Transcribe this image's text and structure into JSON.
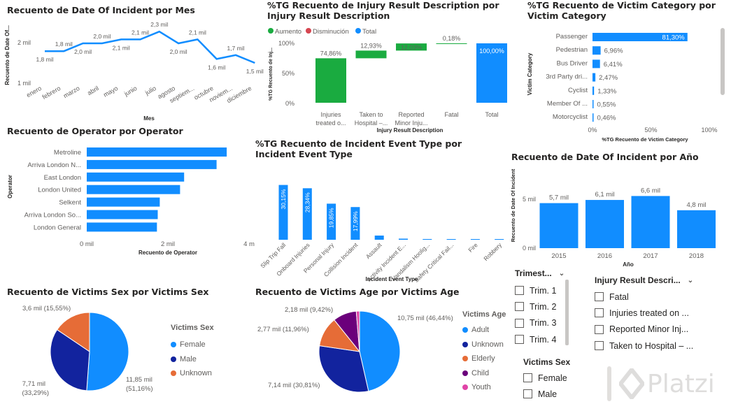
{
  "colors": {
    "blue": "#118DFF",
    "navy": "#12239E",
    "orange": "#E66C37",
    "purple": "#6B007B",
    "pink": "#E044A7",
    "green": "#1AAB40",
    "red": "#D64550",
    "axis": "#605e5c"
  },
  "brand": {
    "name": "Platzi"
  },
  "chart_data": [
    {
      "id": "by_month",
      "type": "line",
      "title": "Recuento de Date Of Incident por Mes",
      "xlabel": "Mes",
      "ylabel": "Recuento de Date Of...",
      "categories": [
        "enero",
        "febrero",
        "marzo",
        "abril",
        "mayo",
        "junio",
        "julio",
        "agosto",
        "septiem...",
        "octubre",
        "noviem...",
        "diciembre"
      ],
      "values": [
        1.8,
        1.8,
        2.0,
        2.0,
        2.1,
        2.1,
        2.3,
        2.0,
        2.1,
        1.6,
        1.7,
        1.5
      ],
      "data_labels": [
        "1,8 mil",
        "1,8 mil",
        "2,0 mil",
        "2,0 mil",
        "2,1 mil",
        "2,1 mil",
        "2,3 mil",
        "2,0 mil",
        "2,1 mil",
        "1,6 mil",
        "1,7 mil",
        "1,5 mil"
      ],
      "ylim": [
        1,
        2.5
      ],
      "yticks": [
        "1 mil",
        "2 mil"
      ]
    },
    {
      "id": "injury_waterfall",
      "type": "bar",
      "title": "%TG Recuento de Injury Result Description por Injury Result Description",
      "xlabel": "Injury Result Description",
      "ylabel": "%TG Recuento de Inj...",
      "legend": [
        "Aumento",
        "Disminución",
        "Total"
      ],
      "categories": [
        "Injuries treated o...",
        "Taken to Hospital –...",
        "Reported Minor Inju...",
        "Fatal",
        "Total"
      ],
      "values": [
        74.86,
        12.93,
        12.03,
        0.18,
        100.0
      ],
      "data_labels": [
        "74,86%",
        "12,93%",
        "12,03%",
        "0,18%",
        "100,00%"
      ],
      "yticks": [
        "0%",
        "50%",
        "100%"
      ]
    },
    {
      "id": "victim_category",
      "type": "bar",
      "title": "%TG Recuento de Victim Category por Victim Category",
      "xlabel": "%TG Recuento de Victim Category",
      "ylabel": "Victim Category",
      "categories": [
        "Passenger",
        "Pedestrian",
        "Bus Driver",
        "3rd Party dri...",
        "Cyclist",
        "Member Of ...",
        "Motorcyclist"
      ],
      "values": [
        81.3,
        6.96,
        6.41,
        2.47,
        1.33,
        0.55,
        0.46
      ],
      "data_labels": [
        "81,30%",
        "6,96%",
        "6,41%",
        "2,47%",
        "1,33%",
        "0,55%",
        "0,46%"
      ],
      "xticks": [
        "0%",
        "50%",
        "100%"
      ]
    },
    {
      "id": "operator",
      "type": "bar",
      "title": "Recuento de Operator por Operator",
      "xlabel": "Recuento de Operator",
      "ylabel": "Operator",
      "categories": [
        "Metroline",
        "Arriva London N...",
        "East London",
        "London United",
        "Selkent",
        "Arriva London So...",
        "London General"
      ],
      "values": [
        3.45,
        3.2,
        2.4,
        2.3,
        1.8,
        1.75,
        1.73
      ],
      "xticks": [
        "0 mil",
        "2 mil",
        "4 m"
      ]
    },
    {
      "id": "event_type",
      "type": "bar",
      "title": "%TG Recuento de Incident Event Type por Incident Event Type",
      "xlabel": "Incident Event Type",
      "categories": [
        "Slip Trip Fall",
        "Onboard Injuries",
        "Personal Injury",
        "Collision Incident",
        "Assault",
        "Activity Incident E...",
        "Vandalism Hoolig...",
        "Safety Critical Fail...",
        "Fire",
        "Robbery"
      ],
      "values": [
        30.15,
        28.34,
        19.85,
        17.99,
        2.3,
        0.6,
        0.4,
        0.3,
        0.2,
        0.2
      ],
      "data_labels": [
        "30,15%",
        "28,34%",
        "19,85%",
        "17,99%",
        "",
        "",
        "",
        "",
        "",
        ""
      ]
    },
    {
      "id": "by_year",
      "type": "bar",
      "title": "Recuento de Date Of Incident por Año",
      "xlabel": "Año",
      "ylabel": "Recuento de Date Of Incident",
      "categories": [
        "2015",
        "2016",
        "2017",
        "2018"
      ],
      "values": [
        5.7,
        6.1,
        6.6,
        4.8
      ],
      "data_labels": [
        "5,7 mil",
        "6,1 mil",
        "6,6 mil",
        "4,8 mil"
      ],
      "yticks": [
        "0 mil",
        "5 mil"
      ]
    },
    {
      "id": "victims_sex",
      "type": "pie",
      "title": "Recuento de Victims Sex por Victims Sex",
      "legend_title": "Victims Sex",
      "categories": [
        "Female",
        "Male",
        "Unknown"
      ],
      "values": [
        11.85,
        7.71,
        3.6
      ],
      "percents": [
        51.16,
        33.29,
        15.55
      ],
      "labels_line1": [
        "11,85 mil",
        "7,71 mil",
        "3,6 mil (15,55%)"
      ],
      "labels_line2": [
        "(51,16%)",
        "(33,29%)",
        ""
      ]
    },
    {
      "id": "victims_age",
      "type": "pie",
      "title": "Recuento de Victims Age por Victims Age",
      "legend_title": "Victims Age",
      "categories": [
        "Adult",
        "Unknown",
        "Elderly",
        "Child",
        "Youth"
      ],
      "values": [
        10.75,
        7.14,
        2.77,
        2.18,
        0.3
      ],
      "percents": [
        46.44,
        30.81,
        11.96,
        9.42,
        1.37
      ],
      "labels": [
        "10,75 mil (46,44%)",
        "7,14 mil (30,81%)",
        "2,77 mil (11,96%)",
        "2,18 mil (9,42%)",
        ""
      ]
    }
  ],
  "slicers": {
    "trimestre": {
      "title": "Trimest...",
      "items": [
        "Trim. 1",
        "Trim. 2",
        "Trim. 3",
        "Trim. 4"
      ]
    },
    "injury_result": {
      "title": "Injury Result Descri...",
      "items": [
        "Fatal",
        "Injuries treated on ...",
        "Reported Minor Inj...",
        "Taken to Hospital – ..."
      ]
    },
    "victims_sex": {
      "title": "Victims Sex",
      "items": [
        "Female",
        "Male"
      ]
    }
  }
}
